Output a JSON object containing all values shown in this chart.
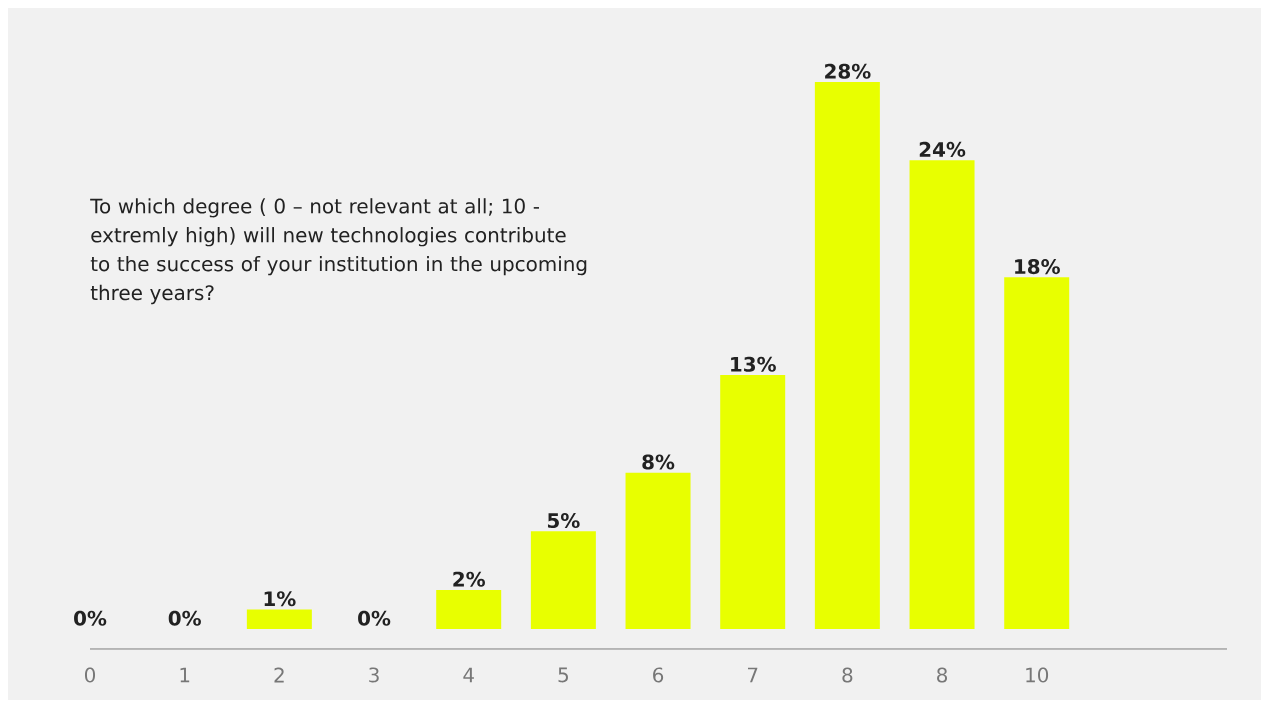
{
  "chart_data": {
    "type": "bar",
    "title": "To which degree ( 0 – not relevant at all; 10 - extremly high) will new technologies contribute to the success of your institution in the upcoming three years?",
    "categories": [
      "0",
      "1",
      "2",
      "3",
      "4",
      "5",
      "6",
      "7",
      "8",
      "8",
      "10"
    ],
    "values": [
      0,
      0,
      1,
      0,
      2,
      5,
      8,
      13,
      28,
      24,
      18
    ],
    "value_labels": [
      "0%",
      "0%",
      "1%",
      "0%",
      "2%",
      "5%",
      "8%",
      "13%",
      "28%",
      "24%",
      "18%"
    ],
    "color": "#e8ff00"
  }
}
